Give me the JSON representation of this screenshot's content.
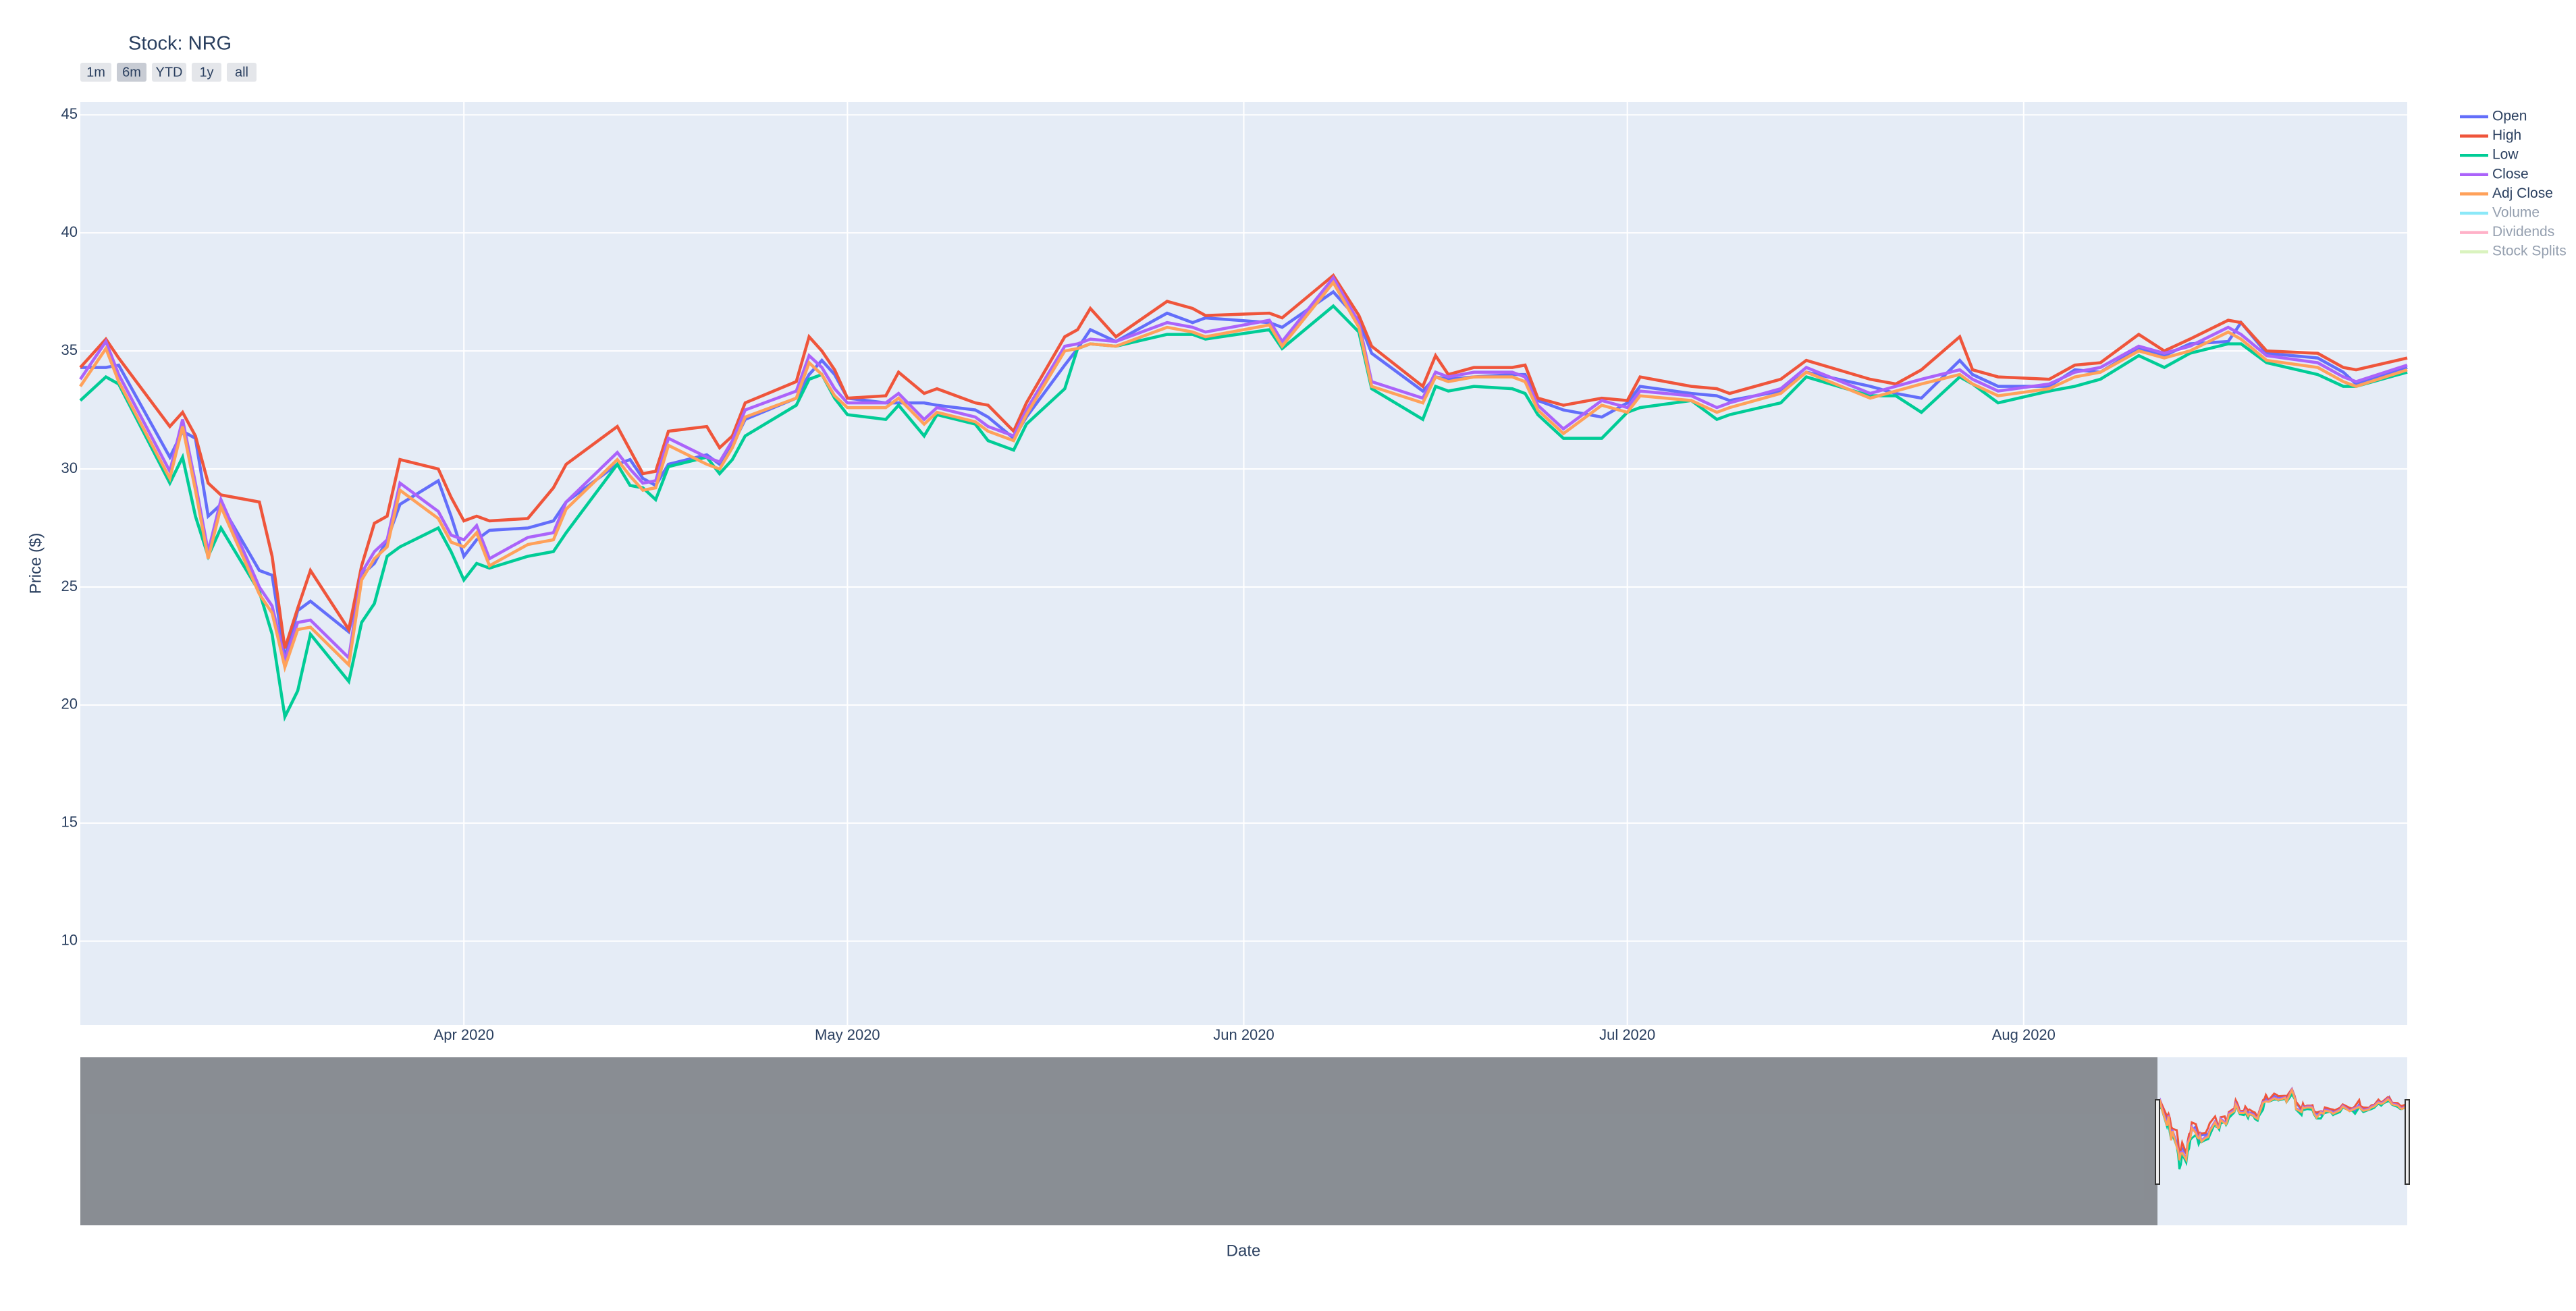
{
  "chart_data": {
    "type": "line",
    "title": "Stock: NRG",
    "buttons": [
      "1m",
      "6m",
      "YTD",
      "1y",
      "all"
    ],
    "active_button": 1,
    "xlabel": "Date",
    "ylabel": "Price ($)",
    "x": [
      "2020-03-02",
      "2020-03-04",
      "2020-03-05",
      "2020-03-09",
      "2020-03-10",
      "2020-03-11",
      "2020-03-12",
      "2020-03-13",
      "2020-03-16",
      "2020-03-17",
      "2020-03-18",
      "2020-03-19",
      "2020-03-20",
      "2020-03-23",
      "2020-03-24",
      "2020-03-25",
      "2020-03-26",
      "2020-03-27",
      "2020-03-30",
      "2020-03-31",
      "2020-04-01",
      "2020-04-02",
      "2020-04-03",
      "2020-04-06",
      "2020-04-08",
      "2020-04-09",
      "2020-04-13",
      "2020-04-14",
      "2020-04-15",
      "2020-04-16",
      "2020-04-17",
      "2020-04-20",
      "2020-04-21",
      "2020-04-22",
      "2020-04-23",
      "2020-04-27",
      "2020-04-28",
      "2020-04-29",
      "2020-04-30",
      "2020-05-01",
      "2020-05-04",
      "2020-05-05",
      "2020-05-07",
      "2020-05-08",
      "2020-05-11",
      "2020-05-12",
      "2020-05-14",
      "2020-05-15",
      "2020-05-18",
      "2020-05-19",
      "2020-05-20",
      "2020-05-22",
      "2020-05-26",
      "2020-05-28",
      "2020-05-29",
      "2020-06-03",
      "2020-06-04",
      "2020-06-08",
      "2020-06-10",
      "2020-06-11",
      "2020-06-15",
      "2020-06-16",
      "2020-06-17",
      "2020-06-19",
      "2020-06-22",
      "2020-06-23",
      "2020-06-24",
      "2020-06-26",
      "2020-06-29",
      "2020-07-01",
      "2020-07-02",
      "2020-07-06",
      "2020-07-08",
      "2020-07-09",
      "2020-07-13",
      "2020-07-15",
      "2020-07-20",
      "2020-07-22",
      "2020-07-24",
      "2020-07-27",
      "2020-07-28",
      "2020-07-30",
      "2020-08-03",
      "2020-08-05",
      "2020-08-07",
      "2020-08-10",
      "2020-08-12",
      "2020-08-14",
      "2020-08-17",
      "2020-08-18",
      "2020-08-20",
      "2020-08-24",
      "2020-08-26",
      "2020-08-27",
      "2020-08-31"
    ],
    "series": [
      {
        "name": "Open",
        "color": "#636efa",
        "values": [
          34.3,
          34.3,
          34.4,
          30.5,
          31.6,
          31.3,
          28.0,
          28.5,
          25.7,
          25.5,
          22.0,
          24.0,
          24.4,
          23.1,
          25.5,
          26.0,
          27.0,
          28.5,
          29.5,
          28.0,
          26.3,
          27.0,
          27.4,
          27.5,
          27.8,
          28.6,
          30.2,
          30.4,
          29.6,
          29.3,
          30.2,
          30.6,
          30.2,
          31.0,
          32.1,
          33.0,
          34.0,
          34.6,
          34.0,
          33.0,
          32.8,
          32.8,
          32.8,
          32.7,
          32.5,
          32.2,
          31.3,
          32.2,
          34.4,
          35.1,
          35.9,
          35.4,
          36.6,
          36.2,
          36.4,
          36.2,
          36.0,
          37.5,
          36.3,
          34.9,
          33.3,
          33.9,
          33.8,
          33.9,
          34.0,
          34.0,
          32.9,
          32.5,
          32.2,
          32.8,
          33.5,
          33.2,
          33.1,
          32.9,
          33.3,
          34.1,
          33.5,
          33.2,
          33.0,
          34.6,
          34.0,
          33.5,
          33.5,
          34.2,
          34.1,
          35.1,
          34.8,
          35.3,
          35.4,
          36.2,
          34.9,
          34.7,
          34.1,
          33.6,
          34.3
        ]
      },
      {
        "name": "High",
        "color": "#EF553B",
        "values": [
          34.3,
          35.5,
          34.7,
          31.8,
          32.4,
          31.4,
          29.4,
          28.9,
          28.6,
          26.3,
          22.4,
          24.1,
          25.7,
          23.2,
          25.9,
          27.7,
          28.0,
          30.4,
          30.0,
          28.8,
          27.8,
          28.0,
          27.8,
          27.9,
          29.2,
          30.2,
          31.8,
          30.8,
          29.8,
          29.9,
          31.6,
          31.8,
          30.9,
          31.4,
          32.8,
          33.7,
          35.6,
          35.0,
          34.2,
          33.0,
          33.1,
          34.1,
          33.2,
          33.4,
          32.8,
          32.7,
          31.6,
          32.8,
          35.6,
          35.9,
          36.8,
          35.6,
          37.1,
          36.8,
          36.5,
          36.6,
          36.4,
          38.2,
          36.5,
          35.2,
          33.5,
          34.8,
          34.0,
          34.3,
          34.3,
          34.4,
          33.0,
          32.7,
          33.0,
          32.9,
          33.9,
          33.5,
          33.4,
          33.2,
          33.8,
          34.6,
          33.8,
          33.6,
          34.2,
          35.6,
          34.2,
          33.9,
          33.8,
          34.4,
          34.5,
          35.7,
          35.0,
          35.5,
          36.3,
          36.2,
          35.0,
          34.9,
          34.3,
          34.2,
          34.7
        ]
      },
      {
        "name": "Low",
        "color": "#00cc96",
        "values": [
          32.9,
          33.9,
          33.6,
          29.4,
          30.5,
          28.0,
          26.3,
          27.5,
          24.8,
          23.0,
          19.5,
          20.6,
          23.0,
          21.0,
          23.5,
          24.3,
          26.3,
          26.7,
          27.5,
          26.5,
          25.3,
          26.0,
          25.8,
          26.3,
          26.5,
          27.3,
          30.2,
          29.3,
          29.2,
          28.7,
          30.1,
          30.5,
          29.8,
          30.4,
          31.4,
          32.7,
          33.8,
          34.0,
          33.0,
          32.3,
          32.1,
          32.7,
          31.4,
          32.3,
          31.9,
          31.2,
          30.8,
          31.9,
          33.4,
          35.1,
          35.3,
          35.2,
          35.7,
          35.7,
          35.5,
          35.9,
          35.1,
          36.9,
          35.8,
          33.4,
          32.1,
          33.5,
          33.3,
          33.5,
          33.4,
          33.2,
          32.3,
          31.3,
          31.3,
          32.4,
          32.6,
          32.9,
          32.1,
          32.3,
          32.8,
          33.9,
          33.1,
          33.1,
          32.4,
          33.9,
          33.6,
          32.8,
          33.3,
          33.5,
          33.8,
          34.8,
          34.3,
          34.9,
          35.3,
          35.3,
          34.5,
          34.0,
          33.5,
          33.5,
          34.1
        ]
      },
      {
        "name": "Close",
        "color": "#ab63fa",
        "values": [
          33.8,
          35.4,
          34.0,
          29.9,
          32.1,
          29.4,
          26.5,
          28.7,
          25.0,
          24.2,
          21.9,
          23.5,
          23.6,
          22.0,
          25.6,
          26.5,
          27.0,
          29.4,
          28.2,
          27.2,
          27.0,
          27.6,
          26.2,
          27.1,
          27.3,
          28.6,
          30.7,
          30.0,
          29.4,
          29.5,
          31.3,
          30.5,
          30.3,
          31.2,
          32.5,
          33.3,
          34.8,
          34.3,
          33.4,
          32.8,
          32.8,
          33.2,
          32.1,
          32.6,
          32.2,
          31.8,
          31.4,
          32.5,
          35.2,
          35.3,
          35.5,
          35.4,
          36.2,
          36.0,
          35.8,
          36.3,
          35.4,
          38.1,
          36.2,
          33.7,
          33.0,
          34.1,
          33.9,
          34.1,
          34.1,
          33.9,
          32.7,
          31.7,
          32.9,
          32.6,
          33.3,
          33.1,
          32.6,
          32.8,
          33.4,
          34.3,
          33.2,
          33.5,
          33.8,
          34.2,
          33.8,
          33.3,
          33.6,
          34.1,
          34.3,
          35.2,
          34.9,
          35.2,
          36.0,
          35.7,
          34.8,
          34.5,
          33.9,
          33.7,
          34.4
        ]
      },
      {
        "name": "Adj Close",
        "color": "#FFA15A",
        "values": [
          33.5,
          35.1,
          33.7,
          29.6,
          31.8,
          29.1,
          26.2,
          28.4,
          24.7,
          23.9,
          21.6,
          23.2,
          23.3,
          21.7,
          25.3,
          26.2,
          26.7,
          29.1,
          27.9,
          26.9,
          26.7,
          27.3,
          25.9,
          26.8,
          27.0,
          28.3,
          30.4,
          29.7,
          29.1,
          29.2,
          31.0,
          30.2,
          30.0,
          30.9,
          32.2,
          33.0,
          34.5,
          34.0,
          33.1,
          32.6,
          32.6,
          33.0,
          31.9,
          32.4,
          32.0,
          31.6,
          31.2,
          32.3,
          35.0,
          35.1,
          35.3,
          35.2,
          36.0,
          35.8,
          35.6,
          36.1,
          35.2,
          37.9,
          36.0,
          33.5,
          32.8,
          33.9,
          33.7,
          33.9,
          33.9,
          33.7,
          32.5,
          31.5,
          32.7,
          32.4,
          33.1,
          32.9,
          32.4,
          32.6,
          33.2,
          34.1,
          33.0,
          33.3,
          33.6,
          34.0,
          33.6,
          33.1,
          33.4,
          33.9,
          34.1,
          35.0,
          34.7,
          35.0,
          35.8,
          35.5,
          34.6,
          34.3,
          33.7,
          33.5,
          34.2
        ]
      },
      {
        "name": "Volume",
        "color": "#19d3f3",
        "legendonly": true
      },
      {
        "name": "Dividends",
        "color": "#FF6692",
        "legendonly": true
      },
      {
        "name": "Stock Splits",
        "color": "#B6E880",
        "legendonly": true
      }
    ],
    "xlim": [
      "2020-03-02",
      "2020-08-31"
    ],
    "xticks": [
      {
        "value": "2020-04-01",
        "label": "Apr 2020"
      },
      {
        "value": "2020-05-01",
        "label": "May 2020"
      },
      {
        "value": "2020-06-01",
        "label": "Jun 2020"
      },
      {
        "value": "2020-07-01",
        "label": "Jul 2020"
      },
      {
        "value": "2020-08-01",
        "label": "Aug 2020"
      }
    ],
    "ylim": [
      6.45,
      45.55
    ],
    "yticks": [
      10,
      15,
      20,
      25,
      30,
      35,
      40,
      45
    ],
    "grid": true,
    "legend": "right",
    "rangeslider": true
  }
}
